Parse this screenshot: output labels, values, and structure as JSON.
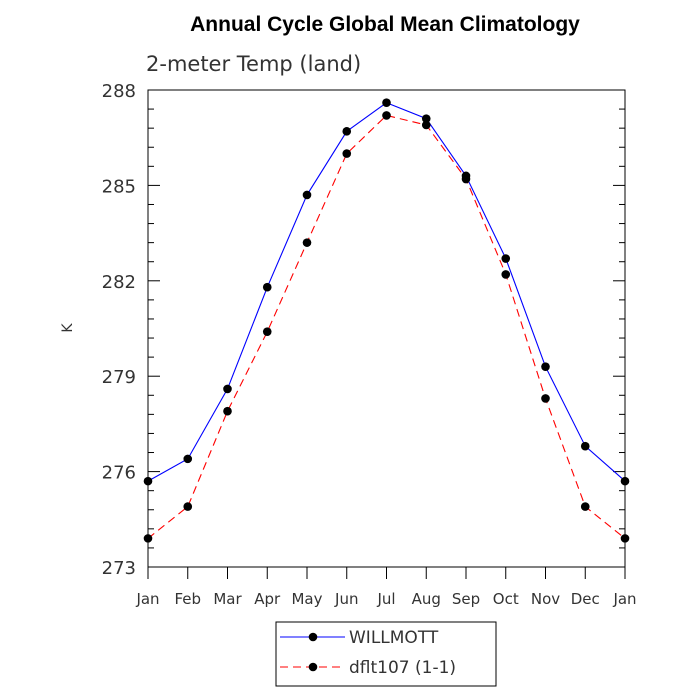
{
  "chart_data": {
    "type": "line",
    "title": "Annual Cycle Global Mean Climatology",
    "subtitle": "2-meter Temp (land)",
    "xlabel": "",
    "ylabel": "K",
    "categories": [
      "Jan",
      "Feb",
      "Mar",
      "Apr",
      "May",
      "Jun",
      "Jul",
      "Aug",
      "Sep",
      "Oct",
      "Nov",
      "Dec",
      "Jan"
    ],
    "ylim": [
      273,
      288
    ],
    "yticks": [
      273,
      276,
      279,
      282,
      285,
      288
    ],
    "legend_position": "bottom-center",
    "series": [
      {
        "name": "WILLMOTT",
        "color": "#0000ff",
        "line_style": "solid",
        "marker": "circle",
        "values": [
          275.7,
          276.4,
          278.6,
          281.8,
          284.7,
          286.7,
          287.6,
          287.1,
          285.3,
          282.7,
          279.3,
          276.8,
          275.7
        ]
      },
      {
        "name": "dflt107 (1-1)",
        "color": "#ff0000",
        "line_style": "dashed",
        "marker": "circle",
        "values": [
          273.9,
          274.9,
          277.9,
          280.4,
          283.2,
          286.0,
          287.2,
          286.9,
          285.2,
          282.2,
          278.3,
          274.9,
          273.9
        ]
      }
    ]
  }
}
